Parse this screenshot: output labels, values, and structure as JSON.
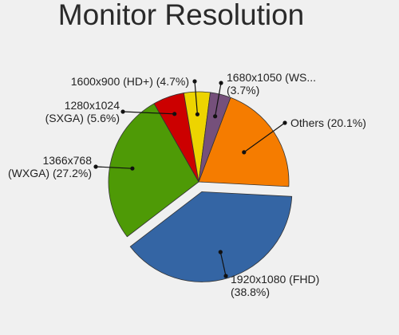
{
  "chart_data": {
    "type": "pie",
    "title": "Monitor Resolution",
    "slices": [
      {
        "label": "Others (20.1%)",
        "lines": [
          "Others (20.1%)"
        ],
        "value": 20.1,
        "color": "#f57c00",
        "exploded": false
      },
      {
        "label": "1920x1080 (FHD) (38.8%)",
        "lines": [
          "1920x1080 (FHD)",
          "(38.8%)"
        ],
        "value": 38.8,
        "color": "#3465a4",
        "exploded": true
      },
      {
        "label": "1366x768 (WXGA) (27.2%)",
        "lines": [
          "1366x768",
          "(WXGA) (27.2%)"
        ],
        "value": 27.2,
        "color": "#4e9a06",
        "exploded": false
      },
      {
        "label": "1280x1024 (SXGA) (5.6%)",
        "lines": [
          "1280x1024",
          "(SXGA) (5.6%)"
        ],
        "value": 5.6,
        "color": "#cc0000",
        "exploded": false
      },
      {
        "label": "1600x900 (HD+) (4.7%)",
        "lines": [
          "1600x900 (HD+) (4.7%)"
        ],
        "value": 4.7,
        "color": "#edd400",
        "exploded": false
      },
      {
        "label": "1680x1050 (WS... (3.7%)",
        "lines": [
          "1680x1050 (WS...",
          "(3.7%)"
        ],
        "value": 3.7,
        "color": "#75507b",
        "exploded": false
      }
    ]
  }
}
